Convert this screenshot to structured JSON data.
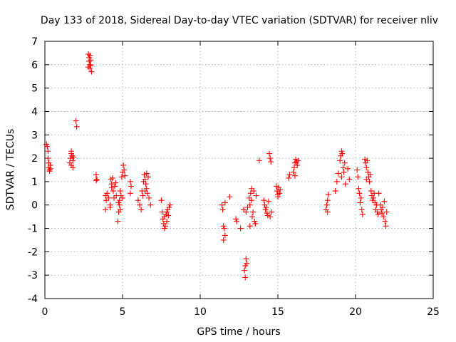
{
  "chart_data": {
    "type": "scatter",
    "title": "Day 133 of 2018, Sidereal Day-to-day VTEC variation (SDTVAR) for receiver nliv",
    "xlabel": "GPS time / hours",
    "ylabel": "SDTVAR / TECUs",
    "xlim": [
      0,
      25
    ],
    "ylim": [
      -4,
      7
    ],
    "xticks": [
      0,
      5,
      10,
      15,
      20,
      25
    ],
    "yticks": [
      -4,
      -3,
      -2,
      -1,
      0,
      1,
      2,
      3,
      4,
      5,
      6,
      7
    ],
    "grid": true,
    "marker": "+",
    "marker_color": "#ff0000",
    "series": [
      {
        "name": "SDTVAR",
        "points": [
          [
            0.1,
            2.6
          ],
          [
            0.15,
            2.5
          ],
          [
            0.2,
            2.3
          ],
          [
            0.2,
            2.0
          ],
          [
            0.25,
            1.8
          ],
          [
            0.25,
            1.6
          ],
          [
            0.3,
            1.5
          ],
          [
            0.3,
            1.45
          ],
          [
            0.35,
            1.7
          ],
          [
            0.35,
            1.55
          ],
          [
            1.6,
            1.8
          ],
          [
            1.65,
            2.0
          ],
          [
            1.7,
            2.2
          ],
          [
            1.7,
            1.7
          ],
          [
            1.75,
            2.1
          ],
          [
            1.8,
            1.9
          ],
          [
            1.8,
            1.6
          ],
          [
            1.85,
            2.05
          ],
          [
            1.7,
            2.3
          ],
          [
            2.0,
            3.6
          ],
          [
            2.05,
            3.35
          ],
          [
            2.8,
            6.45
          ],
          [
            2.85,
            6.3
          ],
          [
            2.85,
            6.15
          ],
          [
            2.9,
            6.0
          ],
          [
            2.9,
            5.85
          ],
          [
            2.95,
            5.95
          ],
          [
            2.95,
            6.2
          ],
          [
            3.0,
            5.7
          ],
          [
            2.8,
            5.9
          ],
          [
            2.9,
            6.4
          ],
          [
            3.3,
            1.3
          ],
          [
            3.35,
            1.1
          ],
          [
            3.3,
            1.05
          ],
          [
            3.9,
            0.4
          ],
          [
            3.95,
            0.2
          ],
          [
            3.9,
            -0.2
          ],
          [
            4.0,
            0.5
          ],
          [
            4.1,
            0.3
          ],
          [
            4.2,
            0.0
          ],
          [
            4.2,
            -0.1
          ],
          [
            4.25,
            1.1
          ],
          [
            4.3,
            0.9
          ],
          [
            4.35,
            1.15
          ],
          [
            4.4,
            0.6
          ],
          [
            4.45,
            0.3
          ],
          [
            4.5,
            0.8
          ],
          [
            4.55,
            0.95
          ],
          [
            4.6,
            0.4
          ],
          [
            4.3,
            0.75
          ],
          [
            4.7,
            -0.7
          ],
          [
            4.75,
            -0.3
          ],
          [
            4.8,
            0.2
          ],
          [
            4.8,
            0.0
          ],
          [
            4.85,
            0.6
          ],
          [
            4.9,
            0.4
          ],
          [
            4.95,
            1.2
          ],
          [
            5.0,
            1.4
          ],
          [
            5.0,
            0.3
          ],
          [
            5.05,
            1.7
          ],
          [
            5.1,
            1.5
          ],
          [
            5.15,
            1.25
          ],
          [
            4.75,
            0.1
          ],
          [
            4.85,
            -0.2
          ],
          [
            5.5,
            1.0
          ],
          [
            5.55,
            0.8
          ],
          [
            5.5,
            0.5
          ],
          [
            6.0,
            0.2
          ],
          [
            6.1,
            0.0
          ],
          [
            6.2,
            -0.2
          ],
          [
            6.25,
            0.6
          ],
          [
            6.3,
            0.4
          ],
          [
            6.35,
            1.0
          ],
          [
            6.4,
            1.3
          ],
          [
            6.45,
            1.1
          ],
          [
            6.5,
            0.9
          ],
          [
            6.55,
            0.7
          ],
          [
            6.6,
            0.5
          ],
          [
            6.65,
            1.2
          ],
          [
            6.7,
            0.3
          ],
          [
            6.8,
            0.0
          ],
          [
            6.45,
            0.6
          ],
          [
            6.55,
            1.35
          ],
          [
            7.5,
            0.2
          ],
          [
            7.55,
            -0.3
          ],
          [
            7.6,
            -0.6
          ],
          [
            7.65,
            -0.8
          ],
          [
            7.7,
            -0.5
          ],
          [
            7.75,
            -0.9
          ],
          [
            7.8,
            -0.4
          ],
          [
            7.85,
            -0.7
          ],
          [
            7.9,
            -0.2
          ],
          [
            7.95,
            -0.45
          ],
          [
            8.0,
            -0.1
          ],
          [
            8.05,
            0.0
          ],
          [
            7.7,
            -1.0
          ],
          [
            7.85,
            -0.3
          ],
          [
            11.4,
            0.0
          ],
          [
            11.45,
            -0.2
          ],
          [
            11.5,
            -0.9
          ],
          [
            11.55,
            -1.0
          ],
          [
            11.6,
            -1.3
          ],
          [
            11.5,
            -1.5
          ],
          [
            11.6,
            0.1
          ],
          [
            11.9,
            0.35
          ],
          [
            12.3,
            -0.6
          ],
          [
            12.35,
            -0.7
          ],
          [
            12.6,
            -1.0
          ],
          [
            12.8,
            -0.2
          ],
          [
            12.85,
            -2.8
          ],
          [
            12.9,
            -3.1
          ],
          [
            12.9,
            -2.6
          ],
          [
            12.95,
            -2.3
          ],
          [
            13.0,
            -2.5
          ],
          [
            12.95,
            -0.3
          ],
          [
            13.05,
            -0.1
          ],
          [
            13.15,
            0.3
          ],
          [
            13.2,
            0.0
          ],
          [
            13.25,
            0.5
          ],
          [
            13.3,
            0.7
          ],
          [
            13.35,
            -0.5
          ],
          [
            13.4,
            -0.3
          ],
          [
            13.45,
            0.6
          ],
          [
            13.5,
            -0.7
          ],
          [
            13.55,
            -0.8
          ],
          [
            13.6,
            0.4
          ],
          [
            13.2,
            -0.9
          ],
          [
            13.3,
            0.2
          ],
          [
            13.8,
            1.9
          ],
          [
            14.1,
            0.2
          ],
          [
            14.15,
            0.0
          ],
          [
            14.2,
            -0.2
          ],
          [
            14.25,
            -0.1
          ],
          [
            14.3,
            -0.35
          ],
          [
            14.35,
            -0.45
          ],
          [
            14.4,
            0.15
          ],
          [
            14.45,
            2.2
          ],
          [
            14.5,
            2.0
          ],
          [
            14.55,
            1.85
          ],
          [
            14.5,
            -0.5
          ],
          [
            14.6,
            -0.3
          ],
          [
            14.9,
            0.8
          ],
          [
            14.95,
            0.6
          ],
          [
            15.0,
            0.45
          ],
          [
            15.05,
            0.75
          ],
          [
            15.1,
            0.5
          ],
          [
            15.15,
            0.65
          ],
          [
            15.0,
            0.35
          ],
          [
            15.7,
            1.15
          ],
          [
            15.75,
            1.3
          ],
          [
            16.0,
            1.4
          ],
          [
            16.05,
            1.6
          ],
          [
            16.1,
            1.8
          ],
          [
            16.15,
            1.95
          ],
          [
            16.2,
            1.85
          ],
          [
            16.25,
            1.7
          ],
          [
            16.1,
            1.25
          ],
          [
            16.3,
            1.9
          ],
          [
            18.1,
            -0.2
          ],
          [
            18.15,
            0.0
          ],
          [
            18.2,
            0.2
          ],
          [
            18.25,
            0.45
          ],
          [
            18.2,
            -0.3
          ],
          [
            18.7,
            0.6
          ],
          [
            18.8,
            1.0
          ],
          [
            18.9,
            1.35
          ],
          [
            19.0,
            1.9
          ],
          [
            19.05,
            2.1
          ],
          [
            19.1,
            2.3
          ],
          [
            19.15,
            2.2
          ],
          [
            19.2,
            1.6
          ],
          [
            19.25,
            1.4
          ],
          [
            19.3,
            1.8
          ],
          [
            19.35,
            0.9
          ],
          [
            19.5,
            1.55
          ],
          [
            19.6,
            1.1
          ],
          [
            19.1,
            1.2
          ],
          [
            20.1,
            1.5
          ],
          [
            20.15,
            1.2
          ],
          [
            20.2,
            0.7
          ],
          [
            20.25,
            0.5
          ],
          [
            20.3,
            0.1
          ],
          [
            20.35,
            0.3
          ],
          [
            20.4,
            -0.2
          ],
          [
            20.45,
            -0.4
          ],
          [
            20.6,
            1.95
          ],
          [
            20.65,
            1.8
          ],
          [
            20.7,
            1.6
          ],
          [
            20.75,
            1.9
          ],
          [
            20.8,
            1.4
          ],
          [
            20.85,
            1.2
          ],
          [
            20.9,
            1.0
          ],
          [
            20.95,
            1.3
          ],
          [
            20.7,
            1.1
          ],
          [
            21.0,
            0.6
          ],
          [
            21.05,
            0.4
          ],
          [
            21.1,
            0.2
          ],
          [
            21.15,
            0.3
          ],
          [
            21.2,
            0.5
          ],
          [
            21.25,
            0.1
          ],
          [
            21.3,
            -0.2
          ],
          [
            21.35,
            0.0
          ],
          [
            21.4,
            -0.3
          ],
          [
            21.45,
            -0.4
          ],
          [
            21.5,
            0.5
          ],
          [
            21.6,
            0.0
          ],
          [
            21.65,
            -0.2
          ],
          [
            21.7,
            -0.35
          ],
          [
            21.75,
            -0.1
          ],
          [
            21.8,
            -0.5
          ],
          [
            21.85,
            0.15
          ],
          [
            21.9,
            -0.7
          ],
          [
            21.95,
            -0.9
          ],
          [
            22.0,
            -0.3
          ]
        ]
      }
    ]
  }
}
